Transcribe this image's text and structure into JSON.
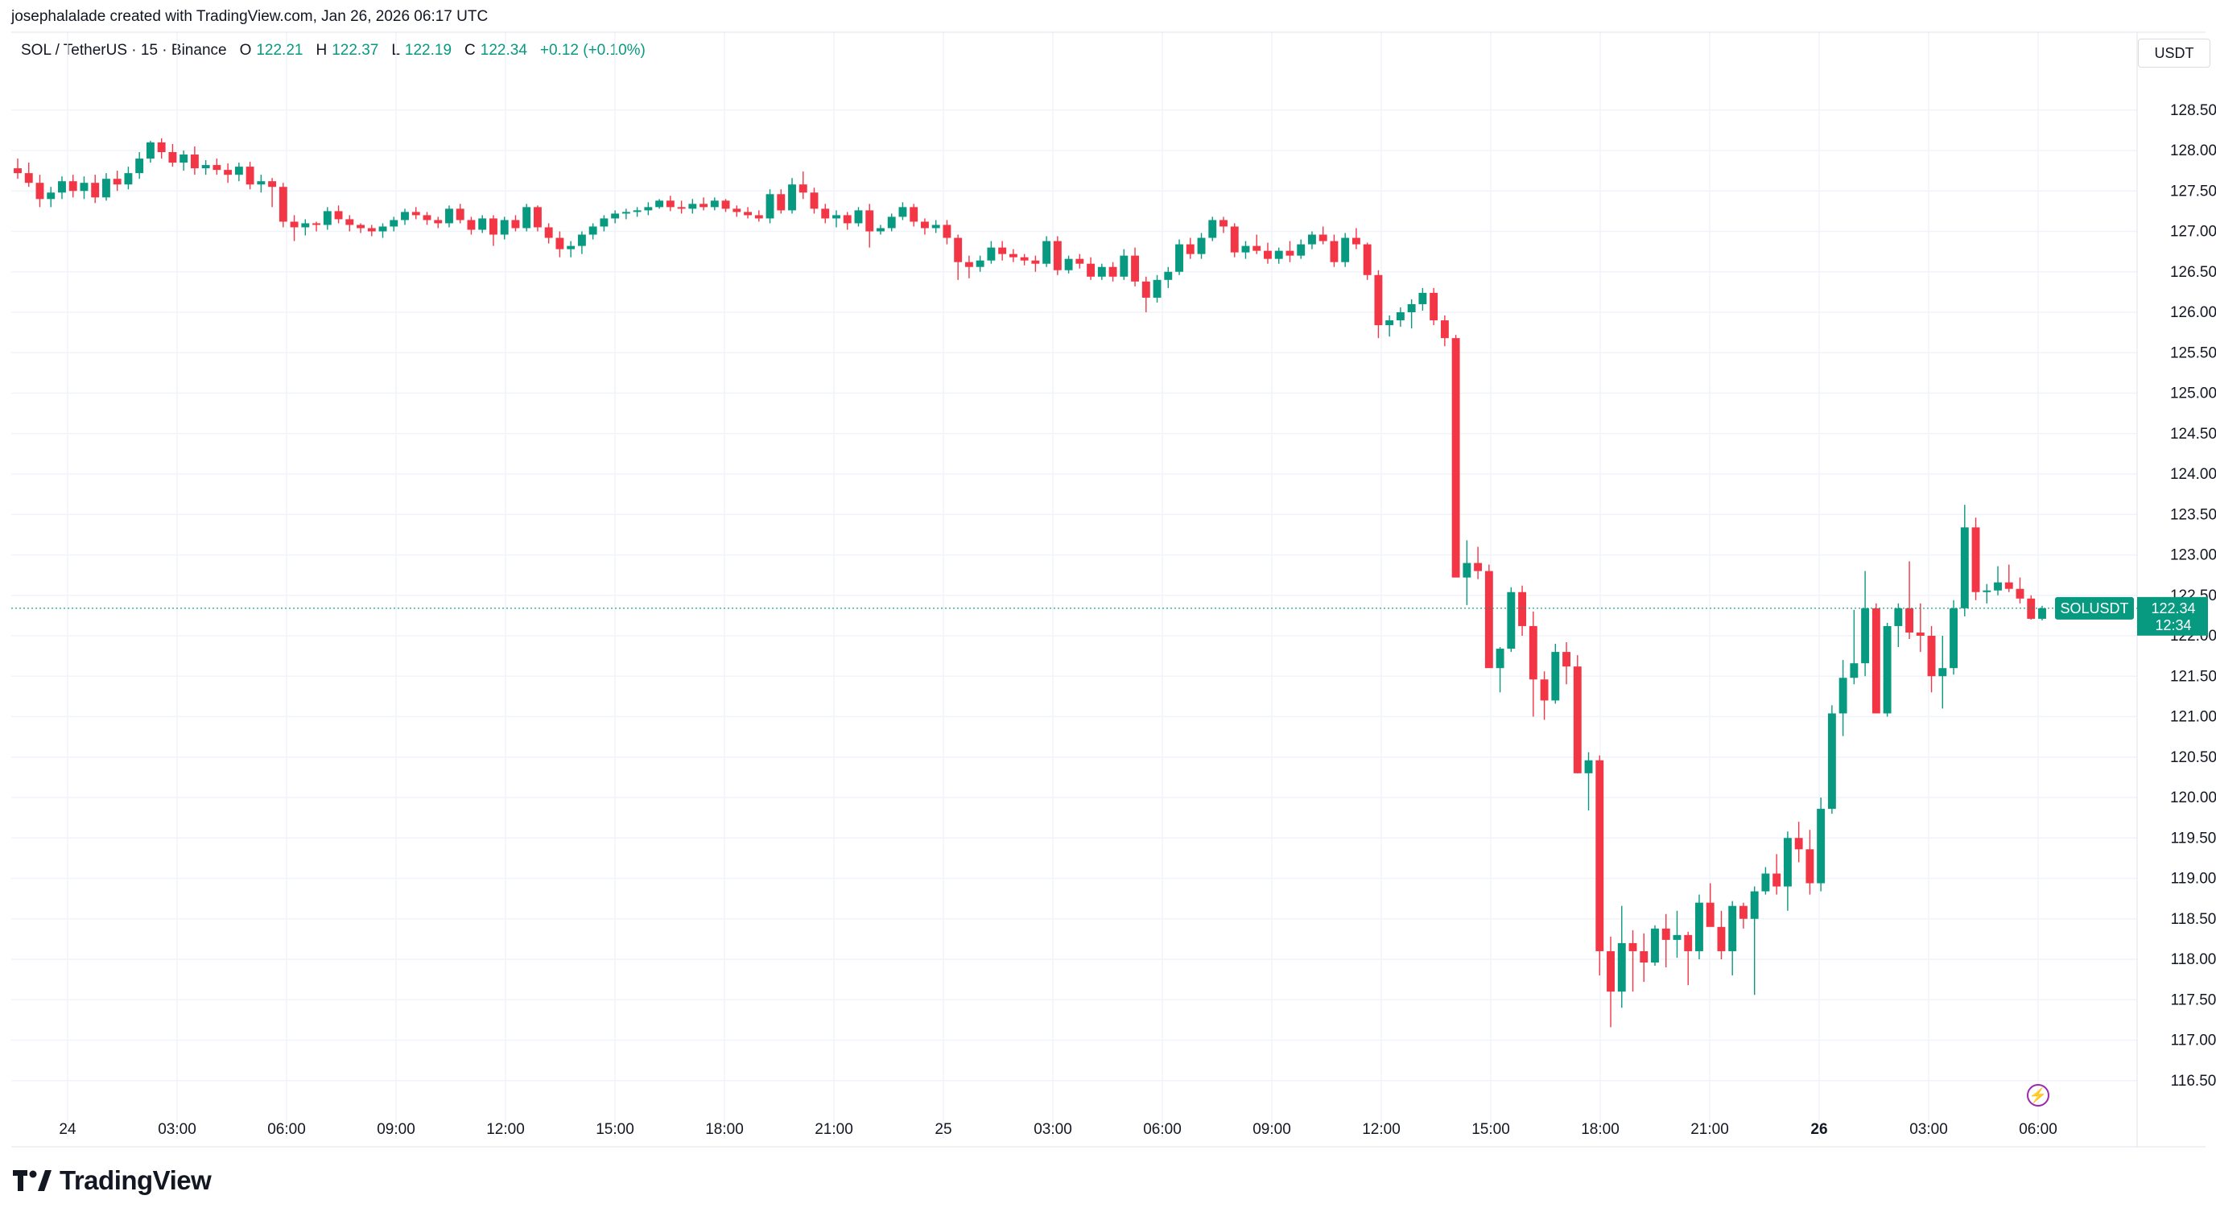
{
  "header": {
    "attribution": "josephalalade created with TradingView.com, Jan 26, 2026 06:17 UTC"
  },
  "legend": {
    "symbol": "SOL / TetherUS · 15 · Binance",
    "o_label": "O",
    "o_value": "122.21",
    "h_label": "H",
    "h_value": "122.37",
    "l_label": "L",
    "l_value": "122.19",
    "c_label": "C",
    "c_value": "122.34",
    "change": "+0.12 (+0.10%)"
  },
  "price_axis": {
    "unit": "USDT"
  },
  "last_price": {
    "ticker": "SOLUSDT",
    "price": "122.34",
    "countdown": "12:34"
  },
  "footer": {
    "brand": "TradingView"
  },
  "colors": {
    "up": "#089981",
    "down": "#f23645",
    "grid": "#f0f3fa",
    "accent": "#9c27b0"
  },
  "icons": {
    "logo": "tradingview-logo-icon",
    "alert": "lightning-icon"
  },
  "chart_data": {
    "type": "candlestick",
    "title": "SOL / TetherUS · 15 · Binance",
    "ylim": [
      116.2,
      128.8
    ],
    "y_ticks": [
      "116.50",
      "117.00",
      "117.50",
      "118.00",
      "118.50",
      "119.00",
      "119.50",
      "120.00",
      "120.50",
      "121.00",
      "121.50",
      "122.00",
      "122.50",
      "123.00",
      "123.50",
      "124.00",
      "124.50",
      "125.00",
      "125.50",
      "126.00",
      "126.50",
      "127.00",
      "127.50",
      "128.00",
      "128.50"
    ],
    "x_ticks": [
      {
        "label": "24",
        "bold": false
      },
      {
        "label": "03:00",
        "bold": false
      },
      {
        "label": "06:00",
        "bold": false
      },
      {
        "label": "09:00",
        "bold": false
      },
      {
        "label": "12:00",
        "bold": false
      },
      {
        "label": "15:00",
        "bold": false
      },
      {
        "label": "18:00",
        "bold": false
      },
      {
        "label": "21:00",
        "bold": false
      },
      {
        "label": "25",
        "bold": false
      },
      {
        "label": "03:00",
        "bold": false
      },
      {
        "label": "06:00",
        "bold": false
      },
      {
        "label": "09:00",
        "bold": false
      },
      {
        "label": "12:00",
        "bold": false
      },
      {
        "label": "15:00",
        "bold": false
      },
      {
        "label": "18:00",
        "bold": false
      },
      {
        "label": "21:00",
        "bold": false
      },
      {
        "label": "26",
        "bold": true
      },
      {
        "label": "03:00",
        "bold": false
      },
      {
        "label": "06:00",
        "bold": false
      }
    ],
    "last_value": 122.34,
    "candles_ohlc": [
      [
        127.78,
        127.9,
        127.65,
        127.72
      ],
      [
        127.72,
        127.85,
        127.55,
        127.6
      ],
      [
        127.6,
        127.7,
        127.3,
        127.4
      ],
      [
        127.4,
        127.55,
        127.3,
        127.48
      ],
      [
        127.48,
        127.68,
        127.4,
        127.62
      ],
      [
        127.62,
        127.7,
        127.42,
        127.5
      ],
      [
        127.5,
        127.68,
        127.4,
        127.6
      ],
      [
        127.6,
        127.7,
        127.35,
        127.42
      ],
      [
        127.42,
        127.72,
        127.38,
        127.65
      ],
      [
        127.65,
        127.75,
        127.5,
        127.58
      ],
      [
        127.58,
        127.8,
        127.52,
        127.72
      ],
      [
        127.72,
        127.98,
        127.65,
        127.9
      ],
      [
        127.9,
        128.12,
        127.85,
        128.1
      ],
      [
        128.1,
        128.15,
        127.9,
        127.98
      ],
      [
        127.98,
        128.08,
        127.8,
        127.85
      ],
      [
        127.85,
        128.0,
        127.75,
        127.95
      ],
      [
        127.95,
        128.05,
        127.7,
        127.78
      ],
      [
        127.78,
        127.88,
        127.7,
        127.82
      ],
      [
        127.82,
        127.9,
        127.7,
        127.76
      ],
      [
        127.76,
        127.84,
        127.6,
        127.7
      ],
      [
        127.7,
        127.85,
        127.62,
        127.8
      ],
      [
        127.8,
        127.86,
        127.52,
        127.58
      ],
      [
        127.58,
        127.7,
        127.48,
        127.62
      ],
      [
        127.62,
        127.66,
        127.3,
        127.55
      ],
      [
        127.55,
        127.6,
        127.05,
        127.12
      ],
      [
        127.12,
        127.2,
        126.88,
        127.05
      ],
      [
        127.05,
        127.15,
        126.95,
        127.1
      ],
      [
        127.1,
        127.12,
        127.0,
        127.08
      ],
      [
        127.08,
        127.3,
        127.02,
        127.25
      ],
      [
        127.25,
        127.32,
        127.1,
        127.15
      ],
      [
        127.15,
        127.2,
        127.0,
        127.08
      ],
      [
        127.08,
        127.1,
        126.98,
        127.04
      ],
      [
        127.04,
        127.08,
        126.94,
        127.0
      ],
      [
        127.0,
        127.1,
        126.92,
        127.06
      ],
      [
        127.06,
        127.18,
        127.0,
        127.14
      ],
      [
        127.14,
        127.28,
        127.08,
        127.24
      ],
      [
        127.24,
        127.3,
        127.15,
        127.2
      ],
      [
        127.2,
        127.24,
        127.08,
        127.14
      ],
      [
        127.14,
        127.18,
        127.04,
        127.1
      ],
      [
        127.1,
        127.32,
        127.05,
        127.28
      ],
      [
        127.28,
        127.34,
        127.1,
        127.14
      ],
      [
        127.14,
        127.18,
        126.96,
        127.02
      ],
      [
        127.02,
        127.2,
        126.98,
        127.16
      ],
      [
        127.16,
        127.2,
        126.82,
        126.96
      ],
      [
        126.96,
        127.18,
        126.9,
        127.14
      ],
      [
        127.14,
        127.2,
        127.0,
        127.04
      ],
      [
        127.04,
        127.34,
        127.0,
        127.3
      ],
      [
        127.3,
        127.32,
        127.0,
        127.05
      ],
      [
        127.05,
        127.1,
        126.85,
        126.92
      ],
      [
        126.92,
        127.0,
        126.68,
        126.78
      ],
      [
        126.78,
        126.88,
        126.68,
        126.82
      ],
      [
        126.82,
        127.0,
        126.72,
        126.96
      ],
      [
        126.96,
        127.1,
        126.9,
        127.06
      ],
      [
        127.06,
        127.2,
        127.0,
        127.16
      ],
      [
        127.16,
        127.26,
        127.1,
        127.22
      ],
      [
        127.22,
        127.28,
        127.15,
        127.24
      ],
      [
        127.24,
        127.3,
        127.18,
        127.26
      ],
      [
        127.26,
        127.36,
        127.2,
        127.3
      ],
      [
        127.3,
        127.4,
        127.28,
        127.38
      ],
      [
        127.38,
        127.44,
        127.25,
        127.3
      ],
      [
        127.3,
        127.38,
        127.22,
        127.28
      ],
      [
        127.28,
        127.4,
        127.22,
        127.34
      ],
      [
        127.34,
        127.42,
        127.26,
        127.3
      ],
      [
        127.3,
        127.42,
        127.26,
        127.38
      ],
      [
        127.38,
        127.4,
        127.24,
        127.28
      ],
      [
        127.28,
        127.32,
        127.18,
        127.24
      ],
      [
        127.24,
        127.3,
        127.16,
        127.2
      ],
      [
        127.2,
        127.26,
        127.12,
        127.16
      ],
      [
        127.16,
        127.52,
        127.1,
        127.46
      ],
      [
        127.46,
        127.52,
        127.22,
        127.26
      ],
      [
        127.26,
        127.66,
        127.22,
        127.58
      ],
      [
        127.58,
        127.74,
        127.4,
        127.48
      ],
      [
        127.48,
        127.54,
        127.22,
        127.28
      ],
      [
        127.28,
        127.34,
        127.1,
        127.16
      ],
      [
        127.16,
        127.26,
        127.05,
        127.2
      ],
      [
        127.2,
        127.24,
        127.02,
        127.1
      ],
      [
        127.1,
        127.3,
        127.06,
        127.26
      ],
      [
        127.26,
        127.34,
        126.8,
        127.0
      ],
      [
        127.0,
        127.08,
        126.96,
        127.04
      ],
      [
        127.04,
        127.22,
        127.0,
        127.18
      ],
      [
        127.18,
        127.36,
        127.14,
        127.3
      ],
      [
        127.3,
        127.34,
        127.06,
        127.12
      ],
      [
        127.12,
        127.16,
        126.96,
        127.04
      ],
      [
        127.04,
        127.14,
        126.98,
        127.08
      ],
      [
        127.08,
        127.14,
        126.84,
        126.92
      ],
      [
        126.92,
        126.96,
        126.4,
        126.62
      ],
      [
        126.62,
        126.7,
        126.42,
        126.56
      ],
      [
        126.56,
        126.7,
        126.5,
        126.64
      ],
      [
        126.64,
        126.88,
        126.6,
        126.8
      ],
      [
        126.8,
        126.88,
        126.64,
        126.72
      ],
      [
        126.72,
        126.78,
        126.62,
        126.68
      ],
      [
        126.68,
        126.72,
        126.58,
        126.64
      ],
      [
        126.64,
        126.7,
        126.5,
        126.6
      ],
      [
        126.6,
        126.94,
        126.56,
        126.88
      ],
      [
        126.88,
        126.94,
        126.46,
        126.52
      ],
      [
        126.52,
        126.7,
        126.48,
        126.66
      ],
      [
        126.66,
        126.72,
        126.54,
        126.6
      ],
      [
        126.6,
        126.68,
        126.4,
        126.44
      ],
      [
        126.44,
        126.6,
        126.4,
        126.56
      ],
      [
        126.56,
        126.62,
        126.38,
        126.44
      ],
      [
        126.44,
        126.78,
        126.4,
        126.7
      ],
      [
        126.7,
        126.8,
        126.32,
        126.38
      ],
      [
        126.38,
        126.44,
        126.0,
        126.18
      ],
      [
        126.18,
        126.46,
        126.12,
        126.4
      ],
      [
        126.4,
        126.56,
        126.3,
        126.5
      ],
      [
        126.5,
        126.9,
        126.46,
        126.84
      ],
      [
        126.84,
        126.92,
        126.66,
        126.72
      ],
      [
        126.72,
        126.98,
        126.66,
        126.92
      ],
      [
        126.92,
        127.18,
        126.88,
        127.14
      ],
      [
        127.14,
        127.18,
        126.98,
        127.06
      ],
      [
        127.06,
        127.1,
        126.68,
        126.74
      ],
      [
        126.74,
        126.88,
        126.66,
        126.82
      ],
      [
        126.82,
        126.96,
        126.72,
        126.76
      ],
      [
        126.76,
        126.86,
        126.6,
        126.66
      ],
      [
        126.66,
        126.8,
        126.6,
        126.76
      ],
      [
        126.76,
        126.88,
        126.62,
        126.7
      ],
      [
        126.7,
        126.9,
        126.66,
        126.84
      ],
      [
        126.84,
        127.0,
        126.78,
        126.96
      ],
      [
        126.96,
        127.06,
        126.84,
        126.88
      ],
      [
        126.88,
        126.96,
        126.56,
        126.62
      ],
      [
        126.62,
        126.98,
        126.56,
        126.92
      ],
      [
        126.92,
        127.04,
        126.78,
        126.84
      ],
      [
        126.84,
        126.86,
        126.4,
        126.46
      ],
      [
        126.46,
        126.52,
        125.68,
        125.84
      ],
      [
        125.84,
        125.96,
        125.7,
        125.9
      ],
      [
        125.9,
        126.06,
        125.82,
        126.0
      ],
      [
        126.0,
        126.16,
        125.8,
        126.1
      ],
      [
        126.1,
        126.3,
        126.02,
        126.24
      ],
      [
        126.24,
        126.3,
        125.84,
        125.9
      ],
      [
        125.9,
        125.96,
        125.58,
        125.68
      ],
      [
        125.68,
        125.72,
        122.8,
        122.72
      ],
      [
        122.72,
        123.18,
        122.38,
        122.9
      ],
      [
        122.9,
        123.1,
        122.7,
        122.8
      ],
      [
        122.8,
        122.88,
        121.8,
        121.6
      ],
      [
        121.6,
        121.86,
        121.3,
        121.84
      ],
      [
        121.84,
        122.6,
        121.8,
        122.54
      ],
      [
        122.54,
        122.62,
        122.0,
        122.12
      ],
      [
        122.12,
        122.3,
        121.0,
        121.46
      ],
      [
        121.46,
        121.56,
        120.96,
        121.2
      ],
      [
        121.2,
        121.9,
        121.16,
        121.8
      ],
      [
        121.8,
        121.92,
        121.4,
        121.62
      ],
      [
        121.62,
        121.76,
        120.3,
        120.3
      ],
      [
        120.3,
        120.56,
        119.84,
        120.46
      ],
      [
        120.46,
        120.52,
        117.8,
        118.1
      ],
      [
        118.1,
        118.28,
        117.16,
        117.6
      ],
      [
        117.6,
        118.66,
        117.4,
        118.2
      ],
      [
        118.2,
        118.36,
        117.6,
        118.1
      ],
      [
        118.1,
        118.32,
        117.72,
        117.96
      ],
      [
        117.96,
        118.42,
        117.92,
        118.38
      ],
      [
        118.38,
        118.56,
        117.9,
        118.24
      ],
      [
        118.24,
        118.6,
        118.02,
        118.3
      ],
      [
        118.3,
        118.34,
        117.68,
        118.1
      ],
      [
        118.1,
        118.8,
        118.0,
        118.7
      ],
      [
        118.7,
        118.94,
        118.52,
        118.4
      ],
      [
        118.4,
        118.6,
        118.0,
        118.1
      ],
      [
        118.1,
        118.72,
        117.8,
        118.66
      ],
      [
        118.66,
        118.7,
        118.38,
        118.5
      ],
      [
        118.5,
        118.9,
        117.56,
        118.84
      ],
      [
        118.84,
        119.14,
        118.8,
        119.06
      ],
      [
        119.06,
        119.3,
        118.8,
        118.9
      ],
      [
        118.9,
        119.58,
        118.6,
        119.5
      ],
      [
        119.5,
        119.7,
        119.2,
        119.36
      ],
      [
        119.36,
        119.6,
        118.8,
        118.94
      ],
      [
        118.94,
        120.0,
        118.84,
        119.86
      ],
      [
        119.86,
        121.14,
        119.8,
        121.04
      ],
      [
        121.04,
        121.7,
        120.76,
        121.48
      ],
      [
        121.48,
        122.32,
        121.4,
        121.66
      ],
      [
        121.66,
        122.8,
        121.5,
        122.34
      ],
      [
        122.34,
        122.4,
        121.16,
        121.04
      ],
      [
        121.04,
        122.16,
        121.0,
        122.12
      ],
      [
        122.12,
        122.4,
        121.86,
        122.34
      ],
      [
        122.34,
        122.92,
        121.96,
        122.04
      ],
      [
        122.04,
        122.4,
        121.8,
        122.0
      ],
      [
        122.0,
        122.12,
        121.3,
        121.5
      ],
      [
        121.5,
        122.0,
        121.1,
        121.6
      ],
      [
        121.6,
        122.44,
        121.52,
        122.34
      ],
      [
        122.34,
        123.62,
        122.24,
        123.34
      ],
      [
        123.34,
        123.46,
        122.44,
        122.54
      ],
      [
        122.54,
        122.64,
        122.4,
        122.56
      ],
      [
        122.56,
        122.86,
        122.5,
        122.66
      ],
      [
        122.66,
        122.88,
        122.54,
        122.58
      ],
      [
        122.58,
        122.72,
        122.4,
        122.46
      ],
      [
        122.46,
        122.5,
        122.2,
        122.21
      ],
      [
        122.21,
        122.37,
        122.19,
        122.34
      ]
    ]
  }
}
